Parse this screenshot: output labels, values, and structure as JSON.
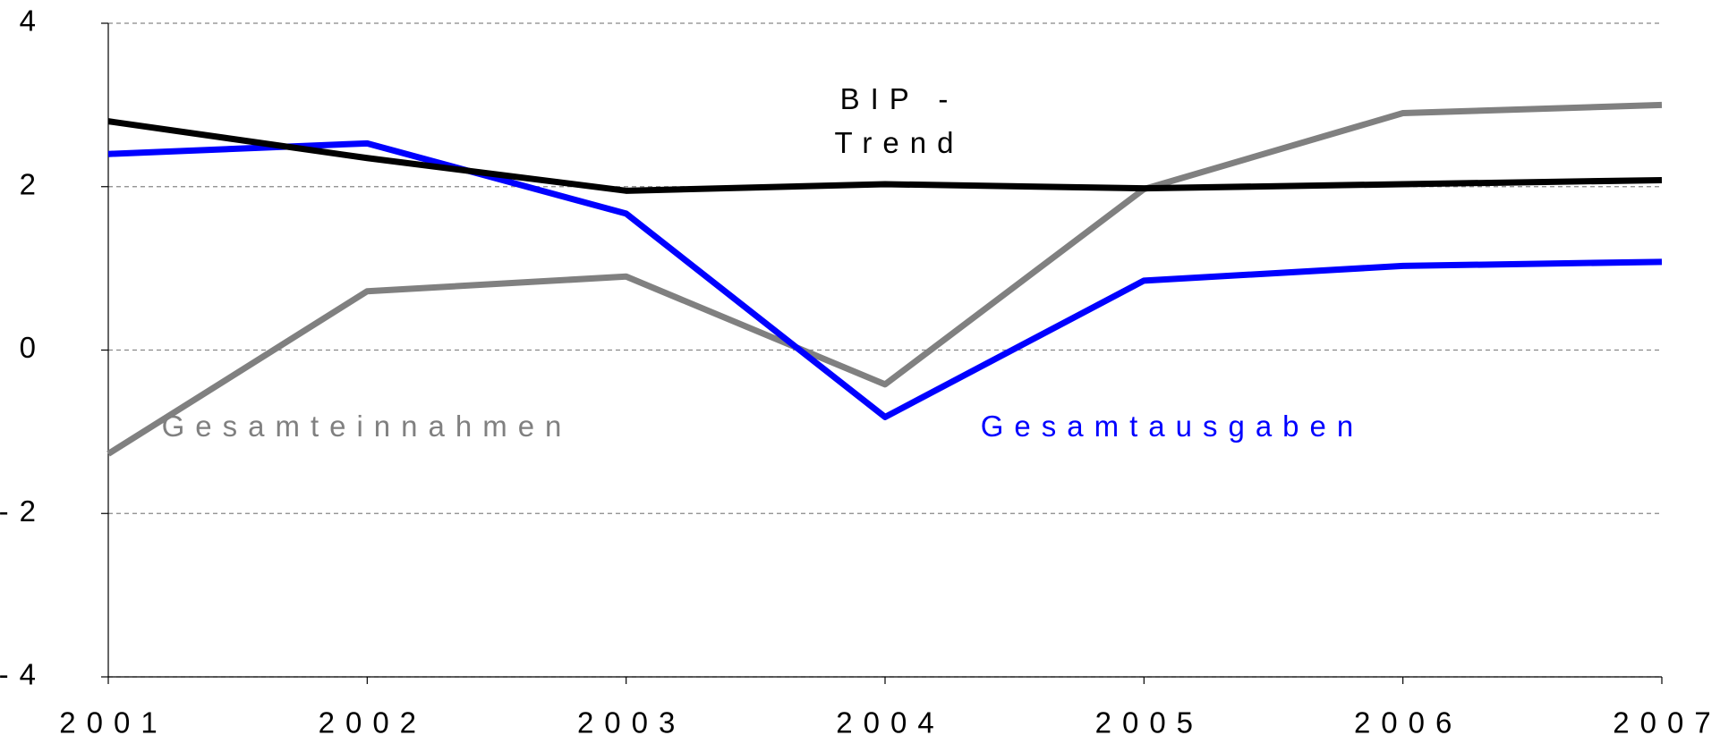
{
  "chart_data": {
    "type": "line",
    "x": [
      2001,
      2002,
      2003,
      2004,
      2005,
      2006,
      2007
    ],
    "xlim": [
      2001,
      2007
    ],
    "xticks": [
      2001,
      2002,
      2003,
      2004,
      2005,
      2006,
      2007
    ],
    "ylim": [
      -4,
      4
    ],
    "yticks": [
      -4,
      -2,
      0,
      2,
      4
    ],
    "grid": true,
    "series": [
      {
        "name": "Gesamteinnahmen",
        "color": "#808080",
        "values": [
          -1.27,
          0.72,
          0.9,
          -0.42,
          1.97,
          2.9,
          3.0
        ]
      },
      {
        "name": "Gesamtausgaben",
        "color": "#0000ff",
        "values": [
          2.4,
          2.53,
          1.67,
          -0.82,
          0.85,
          1.03,
          1.08
        ]
      },
      {
        "name": "BIP - Trend",
        "color": "#000000",
        "values": [
          2.8,
          2.35,
          1.95,
          2.03,
          1.98,
          2.03,
          2.08
        ]
      }
    ]
  }
}
